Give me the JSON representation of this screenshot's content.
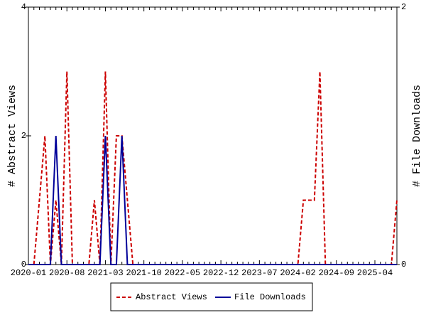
{
  "chart_data": {
    "type": "line",
    "x_label": null,
    "y_label": "# Abstract Views",
    "y2_label": "# File Downloads",
    "categories": [
      "2020-01",
      null,
      null,
      null,
      null,
      null,
      null,
      "2020-08",
      null,
      null,
      null,
      null,
      null,
      null,
      "2021-03",
      null,
      null,
      null,
      null,
      null,
      null,
      "2021-10",
      null,
      null,
      null,
      null,
      null,
      null,
      "2022-05",
      null,
      null,
      null,
      null,
      null,
      null,
      "2022-12",
      null,
      null,
      null,
      null,
      null,
      null,
      "2023-07",
      null,
      null,
      null,
      null,
      null,
      null,
      "2024-02",
      null,
      null,
      null,
      null,
      null,
      null,
      "2024-09",
      null,
      null,
      null,
      null,
      null,
      null,
      "2025-04",
      null,
      null,
      null,
      null
    ],
    "series": [
      {
        "name": "Abstract Views",
        "color": "#cc0000",
        "dash": true,
        "axis": "y",
        "values": [
          0,
          0,
          1,
          2,
          0,
          1,
          0,
          3,
          0,
          0,
          0,
          0,
          1,
          0,
          3,
          0,
          2,
          2,
          1,
          0,
          0,
          0,
          0,
          0,
          0,
          0,
          0,
          0,
          0,
          0,
          0,
          0,
          0,
          0,
          0,
          0,
          0,
          0,
          0,
          0,
          0,
          0,
          0,
          0,
          0,
          0,
          0,
          0,
          0,
          0,
          1,
          1,
          1,
          3,
          0,
          0,
          0,
          0,
          0,
          0,
          0,
          0,
          0,
          0,
          0,
          0,
          0,
          1
        ]
      },
      {
        "name": "File Downloads",
        "color": "#000099",
        "dash": false,
        "axis": "y2",
        "values": [
          0,
          0,
          0,
          0,
          0,
          1,
          0,
          0,
          0,
          0,
          0,
          0,
          0,
          0,
          1,
          0,
          0,
          1,
          0,
          0,
          0,
          0,
          0,
          0,
          0,
          0,
          0,
          0,
          0,
          0,
          0,
          0,
          0,
          0,
          0,
          0,
          0,
          0,
          0,
          0,
          0,
          0,
          0,
          0,
          0,
          0,
          0,
          0,
          0,
          0,
          0,
          0,
          0,
          0,
          0,
          0,
          0,
          0,
          0,
          0,
          0,
          0,
          0,
          0,
          0,
          0,
          0,
          0
        ]
      }
    ],
    "ylim": [
      0,
      4
    ],
    "yticks": [
      0,
      2,
      4
    ],
    "y2lim": [
      0,
      2
    ],
    "y2ticks": [
      0,
      2
    ],
    "legend": "bottom"
  }
}
